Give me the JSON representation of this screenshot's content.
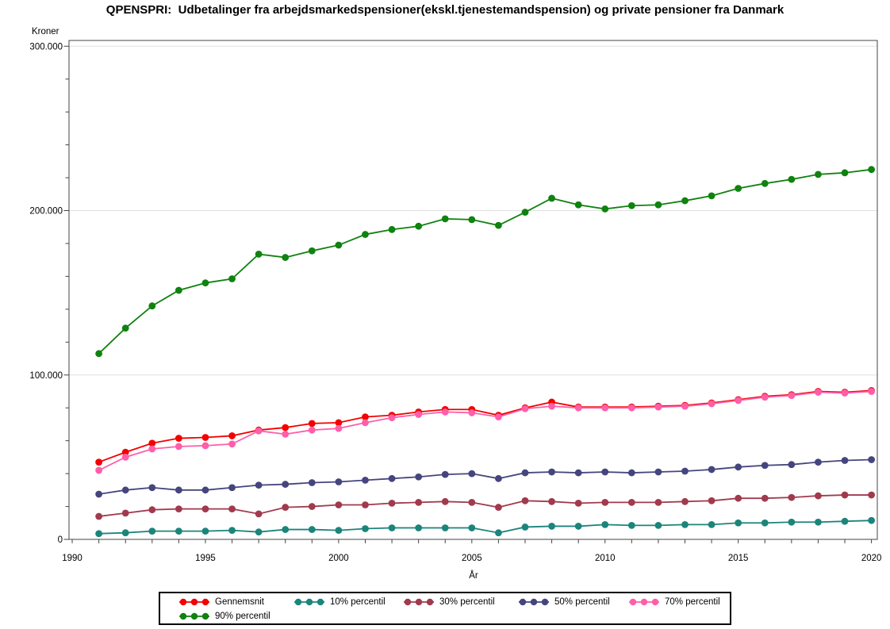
{
  "title": "QPENSPRI:  Udbetalinger fra arbejdsmarkedspensioner(ekskl.tjenestemandspension) og private pensioner fra Danmark",
  "y_axis": {
    "label": "Kroner",
    "tick_values": [
      0,
      100000,
      200000,
      300000
    ],
    "tick_labels": [
      "0",
      "100.000",
      "200.000",
      "300.000"
    ],
    "minor_step": 20000,
    "max": 303500
  },
  "x_axis": {
    "label": "År",
    "labeled_years": [
      1990,
      1995,
      2000,
      2005,
      2010,
      2015,
      2020
    ],
    "minor_step_years": 1,
    "min": 1989.88,
    "max": 2020.22
  },
  "style": {
    "grid_color": "#E0E0E0",
    "axis_color": "#444444",
    "frame_color": "#444444",
    "background": "#FFFFFF"
  },
  "legend": {
    "rows": [
      [
        0,
        1,
        2,
        3,
        4
      ],
      [
        5
      ]
    ],
    "col_offsets": [
      24,
      169,
      307,
      452,
      591
    ],
    "row_tops": [
      3,
      21
    ]
  },
  "chart_data": {
    "type": "line",
    "title": "QPENSPRI:  Udbetalinger fra arbejdsmarkedspensioner(ekskl.tjenestemandspension) og private pensioner fra Danmark",
    "xlabel": "År",
    "ylabel": "Kroner",
    "xlim": [
      1989.88,
      2020.22
    ],
    "ylim": [
      0,
      303500
    ],
    "grid": "horizontal-major",
    "legend_position": "bottom",
    "marker": "circle",
    "x": [
      1991,
      1992,
      1993,
      1994,
      1995,
      1996,
      1997,
      1998,
      1999,
      2000,
      2001,
      2002,
      2003,
      2004,
      2005,
      2006,
      2007,
      2008,
      2009,
      2010,
      2011,
      2012,
      2013,
      2014,
      2015,
      2016,
      2017,
      2018,
      2019,
      2020
    ],
    "series": [
      {
        "name": "Gennemsnit",
        "color": "#F40000",
        "values": [
          47000,
          53000,
          58500,
          61500,
          62000,
          63000,
          66500,
          68000,
          70500,
          71000,
          74500,
          75500,
          77500,
          79000,
          79000,
          75500,
          80000,
          83500,
          80500,
          80500,
          80500,
          81000,
          81500,
          83000,
          85000,
          87000,
          88000,
          90000,
          89500,
          90500
        ]
      },
      {
        "name": "10% percentil",
        "color": "#1B857B",
        "values": [
          3500,
          4000,
          5000,
          5000,
          5000,
          5500,
          4500,
          6000,
          6000,
          5500,
          6500,
          7000,
          7000,
          7000,
          7000,
          4000,
          7500,
          8000,
          8000,
          9000,
          8500,
          8500,
          9000,
          9000,
          10000,
          10000,
          10500,
          10500,
          11000,
          11500
        ]
      },
      {
        "name": "30% percentil",
        "color": "#A13A4D",
        "values": [
          14000,
          16000,
          18000,
          18500,
          18500,
          18500,
          15500,
          19500,
          20000,
          21000,
          21000,
          22000,
          22500,
          23000,
          22500,
          19500,
          23500,
          23000,
          22000,
          22500,
          22500,
          22500,
          23000,
          23500,
          25000,
          25000,
          25500,
          26500,
          27000,
          27000
        ]
      },
      {
        "name": "50% percentil",
        "color": "#45457E",
        "values": [
          27500,
          30000,
          31500,
          30000,
          30000,
          31500,
          33000,
          33500,
          34500,
          35000,
          36000,
          37000,
          38000,
          39500,
          40000,
          37000,
          40500,
          41000,
          40500,
          41000,
          40500,
          41000,
          41500,
          42500,
          44000,
          45000,
          45500,
          47000,
          48000,
          48500
        ]
      },
      {
        "name": "70% percentil",
        "color": "#FF5EA9",
        "values": [
          42000,
          50000,
          55000,
          56500,
          57000,
          58000,
          66000,
          64000,
          66500,
          67500,
          71000,
          74000,
          76000,
          77500,
          77000,
          74500,
          79500,
          81000,
          80000,
          80000,
          80000,
          80500,
          81000,
          82500,
          84500,
          86500,
          87500,
          89500,
          89000,
          90000
        ]
      },
      {
        "name": "90% percentil",
        "color": "#0F820F",
        "values": [
          113000,
          128500,
          142000,
          151500,
          156000,
          158500,
          173500,
          171500,
          175500,
          179000,
          185500,
          188500,
          190500,
          195000,
          194500,
          191000,
          199000,
          207500,
          203500,
          201000,
          203000,
          203500,
          206000,
          209000,
          213500,
          216500,
          219000,
          222000,
          223000,
          225000
        ]
      }
    ]
  }
}
